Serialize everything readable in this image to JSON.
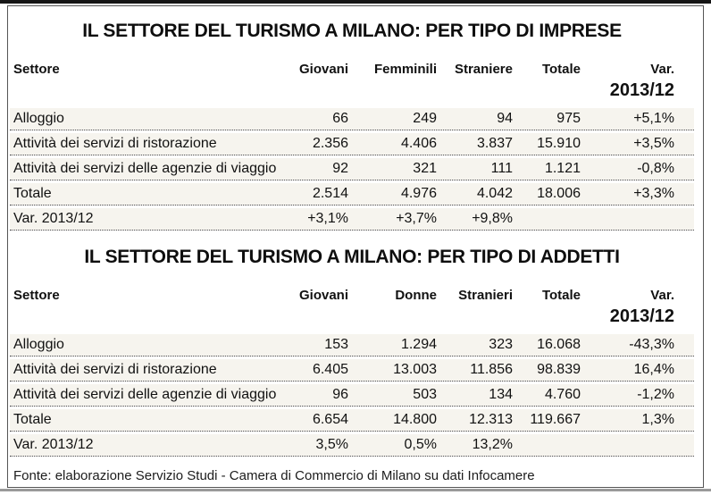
{
  "colors": {
    "row_background": "#f6f4ee",
    "top_bar": "#151515",
    "bottom_bar": "#9a9a9a",
    "frame_border": "#555555",
    "text": "#111111"
  },
  "tables": [
    {
      "title": "IL SETTORE DEL TURISMO A MILANO: PER TIPO DI IMPRESE",
      "columns": [
        "Settore",
        "Giovani",
        "Femminili",
        "Straniere",
        "Totale"
      ],
      "var_header": {
        "line1": "Var.",
        "line2": "2013/12"
      },
      "rows": [
        {
          "label": "Alloggio",
          "values": [
            "66",
            "249",
            "94",
            "975",
            "+5,1%"
          ]
        },
        {
          "label": "Attività dei servizi di ristorazione",
          "values": [
            "2.356",
            "4.406",
            "3.837",
            "15.910",
            "+3,5%"
          ]
        },
        {
          "label": "Attività dei servizi delle agenzie di viaggio",
          "values": [
            "92",
            "321",
            "111",
            "1.121",
            "-0,8%"
          ]
        },
        {
          "label": "Totale",
          "values": [
            "2.514",
            "4.976",
            "4.042",
            "18.006",
            "+3,3%"
          ]
        },
        {
          "label": "Var. 2013/12",
          "values": [
            "+3,1%",
            "+3,7%",
            "+9,8%",
            "",
            ""
          ]
        }
      ]
    },
    {
      "title": "IL SETTORE DEL TURISMO A MILANO: PER TIPO DI ADDETTI",
      "columns": [
        "Settore",
        "Giovani",
        "Donne",
        "Stranieri",
        "Totale"
      ],
      "var_header": {
        "line1": "Var.",
        "line2": "2013/12"
      },
      "rows": [
        {
          "label": "Alloggio",
          "values": [
            "153",
            "1.294",
            "323",
            "16.068",
            "-43,3%"
          ]
        },
        {
          "label": "Attività dei servizi di ristorazione",
          "values": [
            "6.405",
            "13.003",
            "11.856",
            "98.839",
            "16,4%"
          ]
        },
        {
          "label": "Attività dei servizi delle agenzie di viaggio",
          "values": [
            "96",
            "503",
            "134",
            "4.760",
            "-1,2%"
          ]
        },
        {
          "label": "Totale",
          "values": [
            "6.654",
            "14.800",
            "12.313",
            "119.667",
            "1,3%"
          ]
        },
        {
          "label": "Var. 2013/12",
          "values": [
            "3,5%",
            "0,5%",
            "13,2%",
            "",
            ""
          ]
        }
      ]
    }
  ],
  "footer": {
    "source_note": "Fonte: elaborazione Servizio Studi - Camera di Commercio di Milano su dati Infocamere"
  }
}
